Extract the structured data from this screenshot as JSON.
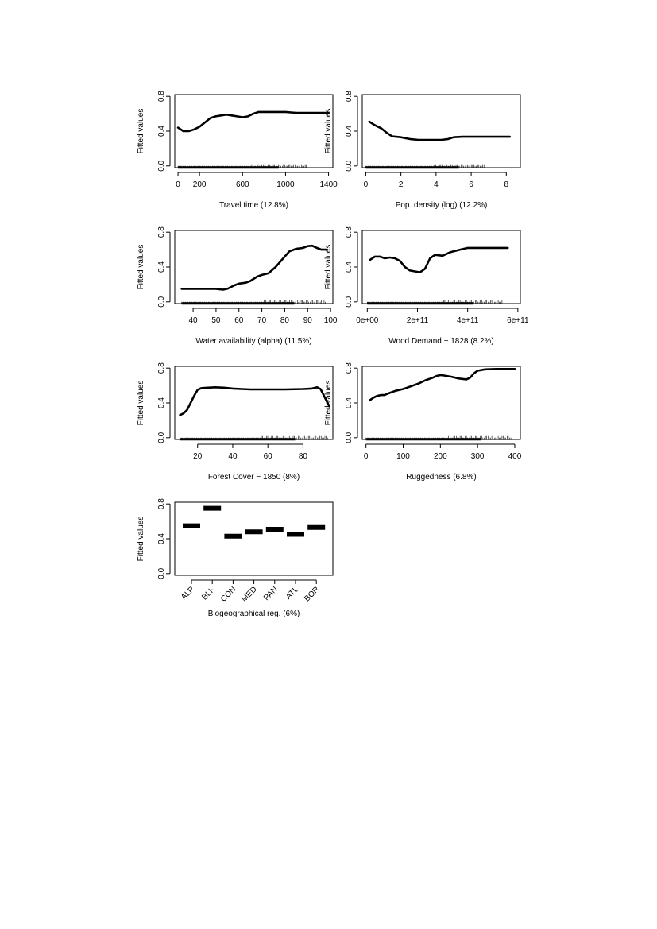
{
  "chart_data": [
    {
      "type": "line",
      "xlabel": "Travel time (12.8%)",
      "ylabel": "Fitted values",
      "xticks": [
        0,
        200,
        600,
        1000,
        1400
      ],
      "yticks": [
        0.0,
        0.4,
        0.8
      ],
      "xlim": [
        -30,
        1440
      ],
      "ylim": [
        -0.02,
        0.82
      ],
      "rug": [
        0,
        1200
      ],
      "x": [
        0,
        50,
        100,
        150,
        200,
        260,
        300,
        350,
        400,
        450,
        500,
        550,
        600,
        650,
        700,
        750,
        800,
        900,
        1000,
        1050,
        1100,
        1200,
        1300,
        1400
      ],
      "y": [
        0.44,
        0.4,
        0.4,
        0.42,
        0.45,
        0.51,
        0.55,
        0.57,
        0.58,
        0.59,
        0.58,
        0.57,
        0.56,
        0.57,
        0.6,
        0.62,
        0.62,
        0.62,
        0.62,
        0.615,
        0.61,
        0.61,
        0.61,
        0.61
      ]
    },
    {
      "type": "line",
      "xlabel": "Pop. density (log) (12.2%)",
      "ylabel": "Fitted values",
      "xticks": [
        0,
        2,
        4,
        6,
        8
      ],
      "yticks": [
        0.0,
        0.4,
        0.8
      ],
      "xlim": [
        -0.2,
        8.8
      ],
      "ylim": [
        -0.02,
        0.82
      ],
      "rug": [
        0,
        6.8
      ],
      "x": [
        0.2,
        0.5,
        0.9,
        1.2,
        1.5,
        2.0,
        2.5,
        3.0,
        3.5,
        4.0,
        4.3,
        4.7,
        5.0,
        5.5,
        6.0,
        7.0,
        8.0,
        8.2
      ],
      "y": [
        0.51,
        0.47,
        0.43,
        0.38,
        0.34,
        0.33,
        0.31,
        0.3,
        0.3,
        0.3,
        0.3,
        0.31,
        0.33,
        0.335,
        0.335,
        0.335,
        0.335,
        0.335
      ]
    },
    {
      "type": "line",
      "xlabel": "Water availability (alpha) (11.5%)",
      "ylabel": "Fitted values",
      "xticks": [
        40,
        50,
        60,
        70,
        80,
        90,
        100
      ],
      "yticks": [
        0.0,
        0.4,
        0.8
      ],
      "xlim": [
        32,
        101
      ],
      "ylim": [
        -0.02,
        0.82
      ],
      "rug": [
        35,
        98
      ],
      "x": [
        35,
        40,
        45,
        50,
        53,
        55,
        58,
        60,
        63,
        65,
        68,
        70,
        73,
        76,
        78,
        80,
        82,
        85,
        88,
        90,
        92,
        94,
        96,
        98
      ],
      "y": [
        0.15,
        0.15,
        0.15,
        0.15,
        0.14,
        0.15,
        0.19,
        0.21,
        0.22,
        0.24,
        0.29,
        0.31,
        0.33,
        0.4,
        0.46,
        0.52,
        0.58,
        0.61,
        0.62,
        0.64,
        0.645,
        0.62,
        0.6,
        0.6
      ]
    },
    {
      "type": "line",
      "xlabel": "Wood Demand − 1828 (8.2%)",
      "ylabel": "Fitted values",
      "xticks": [
        0,
        200000000000,
        400000000000,
        600000000000
      ],
      "xtick_labels": [
        "0e+00",
        "2e+11",
        "4e+11",
        "6e+11"
      ],
      "yticks": [
        0.0,
        0.4,
        0.8
      ],
      "xlim": [
        -20000000000,
        610000000000
      ],
      "ylim": [
        -0.02,
        0.82
      ],
      "rug": [
        0,
        540000000000
      ],
      "x": [
        10000000000,
        30000000000,
        50000000000,
        70000000000,
        90000000000,
        110000000000,
        130000000000,
        150000000000,
        170000000000,
        190000000000,
        210000000000,
        230000000000,
        250000000000,
        270000000000,
        300000000000,
        330000000000,
        370000000000,
        400000000000,
        450000000000,
        500000000000,
        560000000000
      ],
      "y": [
        0.48,
        0.52,
        0.52,
        0.5,
        0.51,
        0.5,
        0.47,
        0.4,
        0.36,
        0.35,
        0.34,
        0.38,
        0.5,
        0.54,
        0.53,
        0.57,
        0.6,
        0.62,
        0.62,
        0.62,
        0.62
      ]
    },
    {
      "type": "line",
      "xlabel": "Forest Cover − 1850 (8%)",
      "ylabel": "Fitted values",
      "xticks": [
        20,
        40,
        60,
        80
      ],
      "yticks": [
        0.0,
        0.4,
        0.8
      ],
      "xlim": [
        7,
        97
      ],
      "ylim": [
        -0.02,
        0.82
      ],
      "rug": [
        10,
        94
      ],
      "x": [
        10,
        12,
        14,
        16,
        18,
        20,
        22,
        26,
        30,
        35,
        40,
        45,
        50,
        60,
        70,
        80,
        85,
        88,
        90,
        92,
        95
      ],
      "y": [
        0.26,
        0.28,
        0.32,
        0.4,
        0.48,
        0.55,
        0.57,
        0.575,
        0.58,
        0.575,
        0.565,
        0.56,
        0.555,
        0.555,
        0.555,
        0.56,
        0.565,
        0.58,
        0.56,
        0.48,
        0.36
      ]
    },
    {
      "type": "line",
      "xlabel": "Ruggedness (6.8%)",
      "ylabel": "Fitted values",
      "xticks": [
        0,
        100,
        200,
        300,
        400
      ],
      "yticks": [
        0.0,
        0.4,
        0.8
      ],
      "xlim": [
        -10,
        415
      ],
      "ylim": [
        -0.02,
        0.82
      ],
      "rug": [
        0,
        395
      ],
      "x": [
        10,
        20,
        30,
        40,
        50,
        60,
        80,
        100,
        120,
        140,
        160,
        180,
        190,
        200,
        210,
        230,
        250,
        270,
        280,
        290,
        300,
        320,
        350,
        400
      ],
      "y": [
        0.43,
        0.46,
        0.48,
        0.49,
        0.49,
        0.51,
        0.54,
        0.56,
        0.59,
        0.62,
        0.66,
        0.69,
        0.71,
        0.72,
        0.715,
        0.7,
        0.68,
        0.67,
        0.69,
        0.74,
        0.77,
        0.785,
        0.79,
        0.79
      ]
    },
    {
      "type": "bar",
      "xlabel": "Biogeographical reg. (6%)",
      "ylabel": "Fitted values",
      "categories": [
        "ALP",
        "BLK",
        "CON",
        "MED",
        "PAN",
        "ATL",
        "BOR"
      ],
      "values": [
        0.55,
        0.75,
        0.43,
        0.48,
        0.51,
        0.45,
        0.53
      ],
      "yticks": [
        0.0,
        0.4,
        0.8
      ],
      "ylim": [
        -0.02,
        0.82
      ]
    }
  ]
}
